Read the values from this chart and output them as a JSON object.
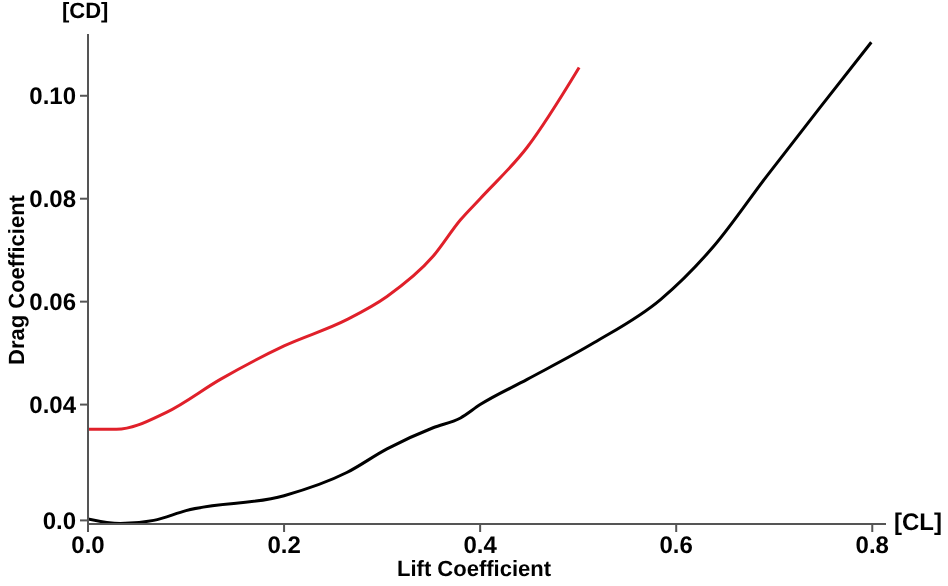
{
  "chart_data": {
    "type": "line",
    "xlabel": "Lift Coefficient",
    "ylabel": "Drag Coefficient",
    "annotations": [
      "[CD]",
      "[CL]"
    ],
    "xlim": [
      0,
      0.814
    ],
    "xticks": [
      {
        "value": 0,
        "label": "0.0"
      },
      0.2,
      0.4,
      0.6,
      0.8
    ],
    "ylim": [
      0.0168,
      0.112
    ],
    "yticks": [
      {
        "value": 0.0175,
        "label": "0.0"
      },
      0.04,
      0.06,
      0.08,
      {
        "value": 0.1,
        "label": "0.10"
      }
    ],
    "grid": false,
    "marker": "none",
    "line_style": "solid",
    "series": [
      {
        "color": "#e0202a",
        "x": [
          0,
          0.029,
          0.08,
          0.135,
          0.2,
          0.264,
          0.305,
          0.352,
          0.38,
          0.4,
          0.448,
          0.501
        ],
        "values": [
          0.0352,
          0.0352,
          0.0385,
          0.0449,
          0.0514,
          0.0565,
          0.061,
          0.0688,
          0.0759,
          0.08,
          0.09,
          0.1055
        ]
      },
      {
        "color": "#000000",
        "x": [
          0,
          0.033,
          0.067,
          0.1,
          0.2,
          0.264,
          0.305,
          0.352,
          0.38,
          0.4,
          0.448,
          0.516,
          0.584,
          0.638,
          0.692,
          0.747,
          0.799
        ],
        "values": [
          0.0178,
          0.0169,
          0.0175,
          0.0194,
          0.0223,
          0.0268,
          0.0314,
          0.0355,
          0.0374,
          0.04,
          0.0449,
          0.052,
          0.0604,
          0.0707,
          0.0843,
          0.0978,
          0.1104
        ]
      }
    ]
  }
}
